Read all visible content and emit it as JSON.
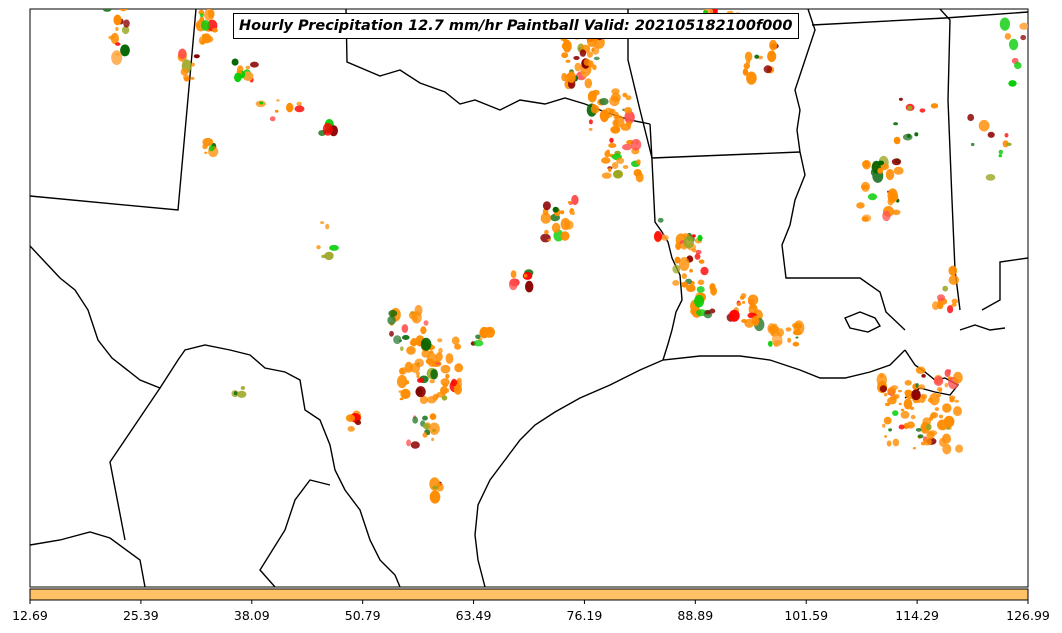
{
  "title": "Hourly Precipitation 12.7 mm/hr Paintball Valid: 202105182100f000",
  "colorbar": {
    "fill_color": "#ffc266",
    "ticks": [
      "12.69",
      "25.39",
      "38.09",
      "50.79",
      "63.49",
      "76.19",
      "88.89",
      "101.59",
      "114.29",
      "126.99"
    ]
  },
  "paintball_colors": [
    "#ff8c00",
    "#ff0000",
    "#00cc00",
    "#006400",
    "#8b0000",
    "#99a51f",
    "#ff5050",
    "#ffa033",
    "#2e7d32"
  ],
  "map_background": "#ffffff",
  "boundary_color": "#000000"
}
